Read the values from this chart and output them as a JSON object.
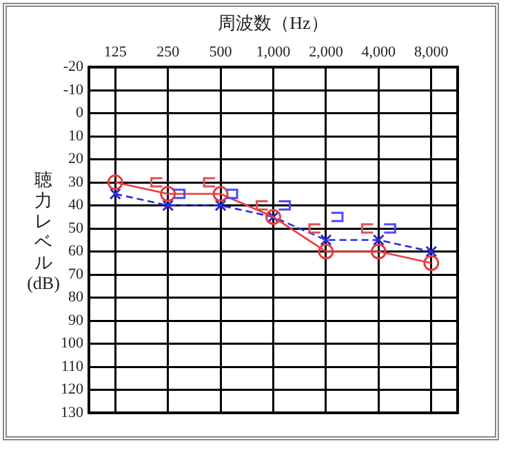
{
  "chart_data": {
    "type": "line",
    "xlabel": "周波数（Hz）",
    "ylabel": "聴力レベル(dB)",
    "categories": [
      "125",
      "250",
      "500",
      "1,000",
      "2,000",
      "4,000",
      "8,000"
    ],
    "series": [
      {
        "color": "#e83c3c",
        "marker": "circle",
        "line_style": "solid",
        "values": [
          30,
          35,
          35,
          45,
          60,
          60,
          65
        ]
      },
      {
        "color": "#2a2ae0",
        "marker": "cross",
        "line_style": "dashed",
        "values": [
          35,
          40,
          40,
          45,
          55,
          55,
          60
        ]
      },
      {
        "type": "scatter",
        "color": "#e05050",
        "values": [
          null,
          30,
          30,
          40,
          50,
          50,
          null
        ]
      },
      {
        "type": "scatter",
        "color": "#4a4aff",
        "values": [
          null,
          35,
          35,
          40,
          45,
          50,
          null
        ]
      }
    ],
    "ylim": [
      130,
      -20
    ],
    "yticks": [
      -20,
      -10,
      0,
      10,
      20,
      30,
      40,
      50,
      60,
      70,
      80,
      90,
      100,
      110,
      120,
      130
    ],
    "grid": true,
    "legend": false
  }
}
